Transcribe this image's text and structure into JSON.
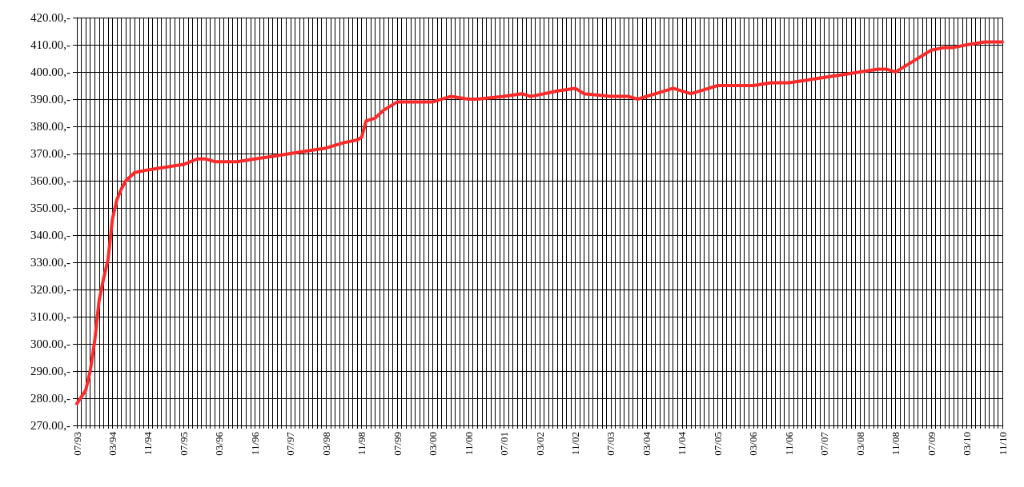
{
  "chart_data": {
    "type": "line",
    "line_style": "solid",
    "marker": "none",
    "grid": true,
    "xlim": [
      "1993-07",
      "2010-11"
    ],
    "ylim": [
      270,
      420
    ],
    "yticks": [
      {
        "value": 270,
        "label": "270.00,-"
      },
      {
        "value": 280,
        "label": "280.00,-"
      },
      {
        "value": 290,
        "label": "290.00,-"
      },
      {
        "value": 300,
        "label": "300.00,-"
      },
      {
        "value": 310,
        "label": "310.00,-"
      },
      {
        "value": 320,
        "label": "320.00,-"
      },
      {
        "value": 330,
        "label": "330.00,-"
      },
      {
        "value": 340,
        "label": "340.00,-"
      },
      {
        "value": 350,
        "label": "350.00,-"
      },
      {
        "value": 360,
        "label": "360.00,-"
      },
      {
        "value": 370,
        "label": "370.00,-"
      },
      {
        "value": 380,
        "label": "380.00,-"
      },
      {
        "value": 390,
        "label": "390.00,-"
      },
      {
        "value": 400,
        "label": "400.00,-"
      },
      {
        "value": 410,
        "label": "410.00,-"
      },
      {
        "value": 420,
        "label": "420.00,-"
      }
    ],
    "xticks": [
      {
        "value": "1993-07",
        "label": "07/93"
      },
      {
        "value": "1993-08",
        "label": null
      },
      {
        "value": "1993-09",
        "label": null
      },
      {
        "value": "1993-10",
        "label": null
      },
      {
        "value": "1993-11",
        "label": null
      },
      {
        "value": "1993-12",
        "label": null
      },
      {
        "value": "1994-01",
        "label": null
      },
      {
        "value": "1994-02",
        "label": null
      },
      {
        "value": "1994-03",
        "label": "03/94"
      },
      {
        "value": "1994-04",
        "label": null
      },
      {
        "value": "1994-05",
        "label": null
      },
      {
        "value": "1994-06",
        "label": null
      },
      {
        "value": "1994-07",
        "label": null
      },
      {
        "value": "1994-08",
        "label": null
      },
      {
        "value": "1994-09",
        "label": null
      },
      {
        "value": "1994-10",
        "label": null
      },
      {
        "value": "1994-11",
        "label": "11/94"
      },
      {
        "value": "1994-12",
        "label": null
      },
      {
        "value": "1995-01",
        "label": null
      },
      {
        "value": "1995-02",
        "label": null
      },
      {
        "value": "1995-03",
        "label": null
      },
      {
        "value": "1995-04",
        "label": null
      },
      {
        "value": "1995-05",
        "label": null
      },
      {
        "value": "1995-06",
        "label": null
      },
      {
        "value": "1995-07",
        "label": "07/95"
      },
      {
        "value": "1995-08",
        "label": null
      },
      {
        "value": "1995-09",
        "label": null
      },
      {
        "value": "1995-10",
        "label": null
      },
      {
        "value": "1995-11",
        "label": null
      },
      {
        "value": "1995-12",
        "label": null
      },
      {
        "value": "1996-01",
        "label": null
      },
      {
        "value": "1996-02",
        "label": null
      },
      {
        "value": "1996-03",
        "label": "03/96"
      },
      {
        "value": "1996-04",
        "label": null
      },
      {
        "value": "1996-05",
        "label": null
      },
      {
        "value": "1996-06",
        "label": null
      },
      {
        "value": "1996-07",
        "label": null
      },
      {
        "value": "1996-08",
        "label": null
      },
      {
        "value": "1996-09",
        "label": null
      },
      {
        "value": "1996-10",
        "label": null
      },
      {
        "value": "1996-11",
        "label": "11/96"
      },
      {
        "value": "1996-12",
        "label": null
      },
      {
        "value": "1997-01",
        "label": null
      },
      {
        "value": "1997-02",
        "label": null
      },
      {
        "value": "1997-03",
        "label": null
      },
      {
        "value": "1997-04",
        "label": null
      },
      {
        "value": "1997-05",
        "label": null
      },
      {
        "value": "1997-06",
        "label": null
      },
      {
        "value": "1997-07",
        "label": "07/97"
      },
      {
        "value": "1997-08",
        "label": null
      },
      {
        "value": "1997-09",
        "label": null
      },
      {
        "value": "1997-10",
        "label": null
      },
      {
        "value": "1997-11",
        "label": null
      },
      {
        "value": "1997-12",
        "label": null
      },
      {
        "value": "1998-01",
        "label": null
      },
      {
        "value": "1998-02",
        "label": null
      },
      {
        "value": "1998-03",
        "label": "03/98"
      },
      {
        "value": "1998-04",
        "label": null
      },
      {
        "value": "1998-05",
        "label": null
      },
      {
        "value": "1998-06",
        "label": null
      },
      {
        "value": "1998-07",
        "label": null
      },
      {
        "value": "1998-08",
        "label": null
      },
      {
        "value": "1998-09",
        "label": null
      },
      {
        "value": "1998-10",
        "label": null
      },
      {
        "value": "1998-11",
        "label": "11/98"
      },
      {
        "value": "1998-12",
        "label": null
      },
      {
        "value": "1999-01",
        "label": null
      },
      {
        "value": "1999-02",
        "label": null
      },
      {
        "value": "1999-03",
        "label": null
      },
      {
        "value": "1999-04",
        "label": null
      },
      {
        "value": "1999-05",
        "label": null
      },
      {
        "value": "1999-06",
        "label": null
      },
      {
        "value": "1999-07",
        "label": "07/99"
      },
      {
        "value": "1999-08",
        "label": null
      },
      {
        "value": "1999-09",
        "label": null
      },
      {
        "value": "1999-10",
        "label": null
      },
      {
        "value": "1999-11",
        "label": null
      },
      {
        "value": "1999-12",
        "label": null
      },
      {
        "value": "2000-01",
        "label": null
      },
      {
        "value": "2000-02",
        "label": null
      },
      {
        "value": "2000-03",
        "label": "03/00"
      },
      {
        "value": "2000-04",
        "label": null
      },
      {
        "value": "2000-05",
        "label": null
      },
      {
        "value": "2000-06",
        "label": null
      },
      {
        "value": "2000-07",
        "label": null
      },
      {
        "value": "2000-08",
        "label": null
      },
      {
        "value": "2000-09",
        "label": null
      },
      {
        "value": "2000-10",
        "label": null
      },
      {
        "value": "2000-11",
        "label": "11/00"
      },
      {
        "value": "2000-12",
        "label": null
      },
      {
        "value": "2001-01",
        "label": null
      },
      {
        "value": "2001-02",
        "label": null
      },
      {
        "value": "2001-03",
        "label": null
      },
      {
        "value": "2001-04",
        "label": null
      },
      {
        "value": "2001-05",
        "label": null
      },
      {
        "value": "2001-06",
        "label": null
      },
      {
        "value": "2001-07",
        "label": "07/01"
      },
      {
        "value": "2001-08",
        "label": null
      },
      {
        "value": "2001-09",
        "label": null
      },
      {
        "value": "2001-10",
        "label": null
      },
      {
        "value": "2001-11",
        "label": null
      },
      {
        "value": "2001-12",
        "label": null
      },
      {
        "value": "2002-01",
        "label": null
      },
      {
        "value": "2002-02",
        "label": null
      },
      {
        "value": "2002-03",
        "label": "03/02"
      },
      {
        "value": "2002-04",
        "label": null
      },
      {
        "value": "2002-05",
        "label": null
      },
      {
        "value": "2002-06",
        "label": null
      },
      {
        "value": "2002-07",
        "label": null
      },
      {
        "value": "2002-08",
        "label": null
      },
      {
        "value": "2002-09",
        "label": null
      },
      {
        "value": "2002-10",
        "label": null
      },
      {
        "value": "2002-11",
        "label": "11/02"
      },
      {
        "value": "2002-12",
        "label": null
      },
      {
        "value": "2003-01",
        "label": null
      },
      {
        "value": "2003-02",
        "label": null
      },
      {
        "value": "2003-03",
        "label": null
      },
      {
        "value": "2003-04",
        "label": null
      },
      {
        "value": "2003-05",
        "label": null
      },
      {
        "value": "2003-06",
        "label": null
      },
      {
        "value": "2003-07",
        "label": "07/03"
      },
      {
        "value": "2003-08",
        "label": null
      },
      {
        "value": "2003-09",
        "label": null
      },
      {
        "value": "2003-10",
        "label": null
      },
      {
        "value": "2003-11",
        "label": null
      },
      {
        "value": "2003-12",
        "label": null
      },
      {
        "value": "2004-01",
        "label": null
      },
      {
        "value": "2004-02",
        "label": null
      },
      {
        "value": "2004-03",
        "label": "03/04"
      },
      {
        "value": "2004-04",
        "label": null
      },
      {
        "value": "2004-05",
        "label": null
      },
      {
        "value": "2004-06",
        "label": null
      },
      {
        "value": "2004-07",
        "label": null
      },
      {
        "value": "2004-08",
        "label": null
      },
      {
        "value": "2004-09",
        "label": null
      },
      {
        "value": "2004-10",
        "label": null
      },
      {
        "value": "2004-11",
        "label": "11/04"
      },
      {
        "value": "2004-12",
        "label": null
      },
      {
        "value": "2005-01",
        "label": null
      },
      {
        "value": "2005-02",
        "label": null
      },
      {
        "value": "2005-03",
        "label": null
      },
      {
        "value": "2005-04",
        "label": null
      },
      {
        "value": "2005-05",
        "label": null
      },
      {
        "value": "2005-06",
        "label": null
      },
      {
        "value": "2005-07",
        "label": "07/05"
      },
      {
        "value": "2005-08",
        "label": null
      },
      {
        "value": "2005-09",
        "label": null
      },
      {
        "value": "2005-10",
        "label": null
      },
      {
        "value": "2005-11",
        "label": null
      },
      {
        "value": "2005-12",
        "label": null
      },
      {
        "value": "2006-01",
        "label": null
      },
      {
        "value": "2006-02",
        "label": null
      },
      {
        "value": "2006-03",
        "label": "03/06"
      },
      {
        "value": "2006-04",
        "label": null
      },
      {
        "value": "2006-05",
        "label": null
      },
      {
        "value": "2006-06",
        "label": null
      },
      {
        "value": "2006-07",
        "label": null
      },
      {
        "value": "2006-08",
        "label": null
      },
      {
        "value": "2006-09",
        "label": null
      },
      {
        "value": "2006-10",
        "label": null
      },
      {
        "value": "2006-11",
        "label": "11/06"
      },
      {
        "value": "2006-12",
        "label": null
      },
      {
        "value": "2007-01",
        "label": null
      },
      {
        "value": "2007-02",
        "label": null
      },
      {
        "value": "2007-03",
        "label": null
      },
      {
        "value": "2007-04",
        "label": null
      },
      {
        "value": "2007-05",
        "label": null
      },
      {
        "value": "2007-06",
        "label": null
      },
      {
        "value": "2007-07",
        "label": "07/07"
      },
      {
        "value": "2007-08",
        "label": null
      },
      {
        "value": "2007-09",
        "label": null
      },
      {
        "value": "2007-10",
        "label": null
      },
      {
        "value": "2007-11",
        "label": null
      },
      {
        "value": "2007-12",
        "label": null
      },
      {
        "value": "2008-01",
        "label": null
      },
      {
        "value": "2008-02",
        "label": null
      },
      {
        "value": "2008-03",
        "label": "03/08"
      },
      {
        "value": "2008-04",
        "label": null
      },
      {
        "value": "2008-05",
        "label": null
      },
      {
        "value": "2008-06",
        "label": null
      },
      {
        "value": "2008-07",
        "label": null
      },
      {
        "value": "2008-08",
        "label": null
      },
      {
        "value": "2008-09",
        "label": null
      },
      {
        "value": "2008-10",
        "label": null
      },
      {
        "value": "2008-11",
        "label": "11/08"
      },
      {
        "value": "2008-12",
        "label": null
      },
      {
        "value": "2009-01",
        "label": null
      },
      {
        "value": "2009-02",
        "label": null
      },
      {
        "value": "2009-03",
        "label": null
      },
      {
        "value": "2009-04",
        "label": null
      },
      {
        "value": "2009-05",
        "label": null
      },
      {
        "value": "2009-06",
        "label": null
      },
      {
        "value": "2009-07",
        "label": "07/09"
      },
      {
        "value": "2009-08",
        "label": null
      },
      {
        "value": "2009-09",
        "label": null
      },
      {
        "value": "2009-10",
        "label": null
      },
      {
        "value": "2009-11",
        "label": null
      },
      {
        "value": "2009-12",
        "label": null
      },
      {
        "value": "2010-01",
        "label": null
      },
      {
        "value": "2010-02",
        "label": null
      },
      {
        "value": "2010-03",
        "label": "03/10"
      },
      {
        "value": "2010-04",
        "label": null
      },
      {
        "value": "2010-05",
        "label": null
      },
      {
        "value": "2010-06",
        "label": null
      },
      {
        "value": "2010-07",
        "label": null
      },
      {
        "value": "2010-08",
        "label": null
      },
      {
        "value": "2010-09",
        "label": null
      },
      {
        "value": "2010-10",
        "label": null
      },
      {
        "value": "2010-11",
        "label": "11/10"
      }
    ],
    "series": [
      {
        "color": "#ff2a2a",
        "x": [
          "1993-07",
          "1993-09",
          "1993-10",
          "1993-11",
          "1993-12",
          "1994-01",
          "1994-02",
          "1994-03",
          "1994-04",
          "1994-05",
          "1994-06",
          "1994-08",
          "1994-11",
          "1995-03",
          "1995-07",
          "1995-10",
          "1995-12",
          "1996-02",
          "1996-07",
          "1996-11",
          "1997-03",
          "1997-07",
          "1997-11",
          "1998-03",
          "1998-07",
          "1998-10",
          "1998-11",
          "1998-12",
          "1999-02",
          "1999-04",
          "1999-07",
          "1999-09",
          "1999-12",
          "2000-03",
          "2000-07",
          "2000-11",
          "2001-01",
          "2001-07",
          "2001-11",
          "2002-01",
          "2002-07",
          "2002-11",
          "2003-01",
          "2003-07",
          "2003-11",
          "2004-01",
          "2004-07",
          "2004-09",
          "2004-11",
          "2005-01",
          "2005-03",
          "2005-07",
          "2005-11",
          "2006-03",
          "2006-07",
          "2006-11",
          "2007-03",
          "2007-07",
          "2007-11",
          "2008-03",
          "2008-07",
          "2008-09",
          "2008-11",
          "2008-12",
          "2009-03",
          "2009-07",
          "2009-10",
          "2009-12",
          "2010-03",
          "2010-07",
          "2010-11"
        ],
        "values": [
          278,
          283,
          290,
          301,
          316,
          324,
          331,
          346,
          353,
          357,
          360,
          363,
          364,
          365,
          366,
          368,
          368,
          367,
          367,
          368,
          369,
          370,
          371,
          372,
          374,
          375,
          376,
          382,
          383,
          386,
          389,
          389,
          389,
          389,
          391,
          390,
          390,
          391,
          392,
          391,
          393,
          394,
          392,
          391,
          391,
          390,
          393,
          394,
          393,
          392,
          393,
          395,
          395,
          395,
          396,
          396,
          397,
          398,
          399,
          400,
          401,
          401,
          400,
          401,
          404,
          408,
          409,
          409,
          410,
          411,
          411
        ]
      }
    ]
  }
}
